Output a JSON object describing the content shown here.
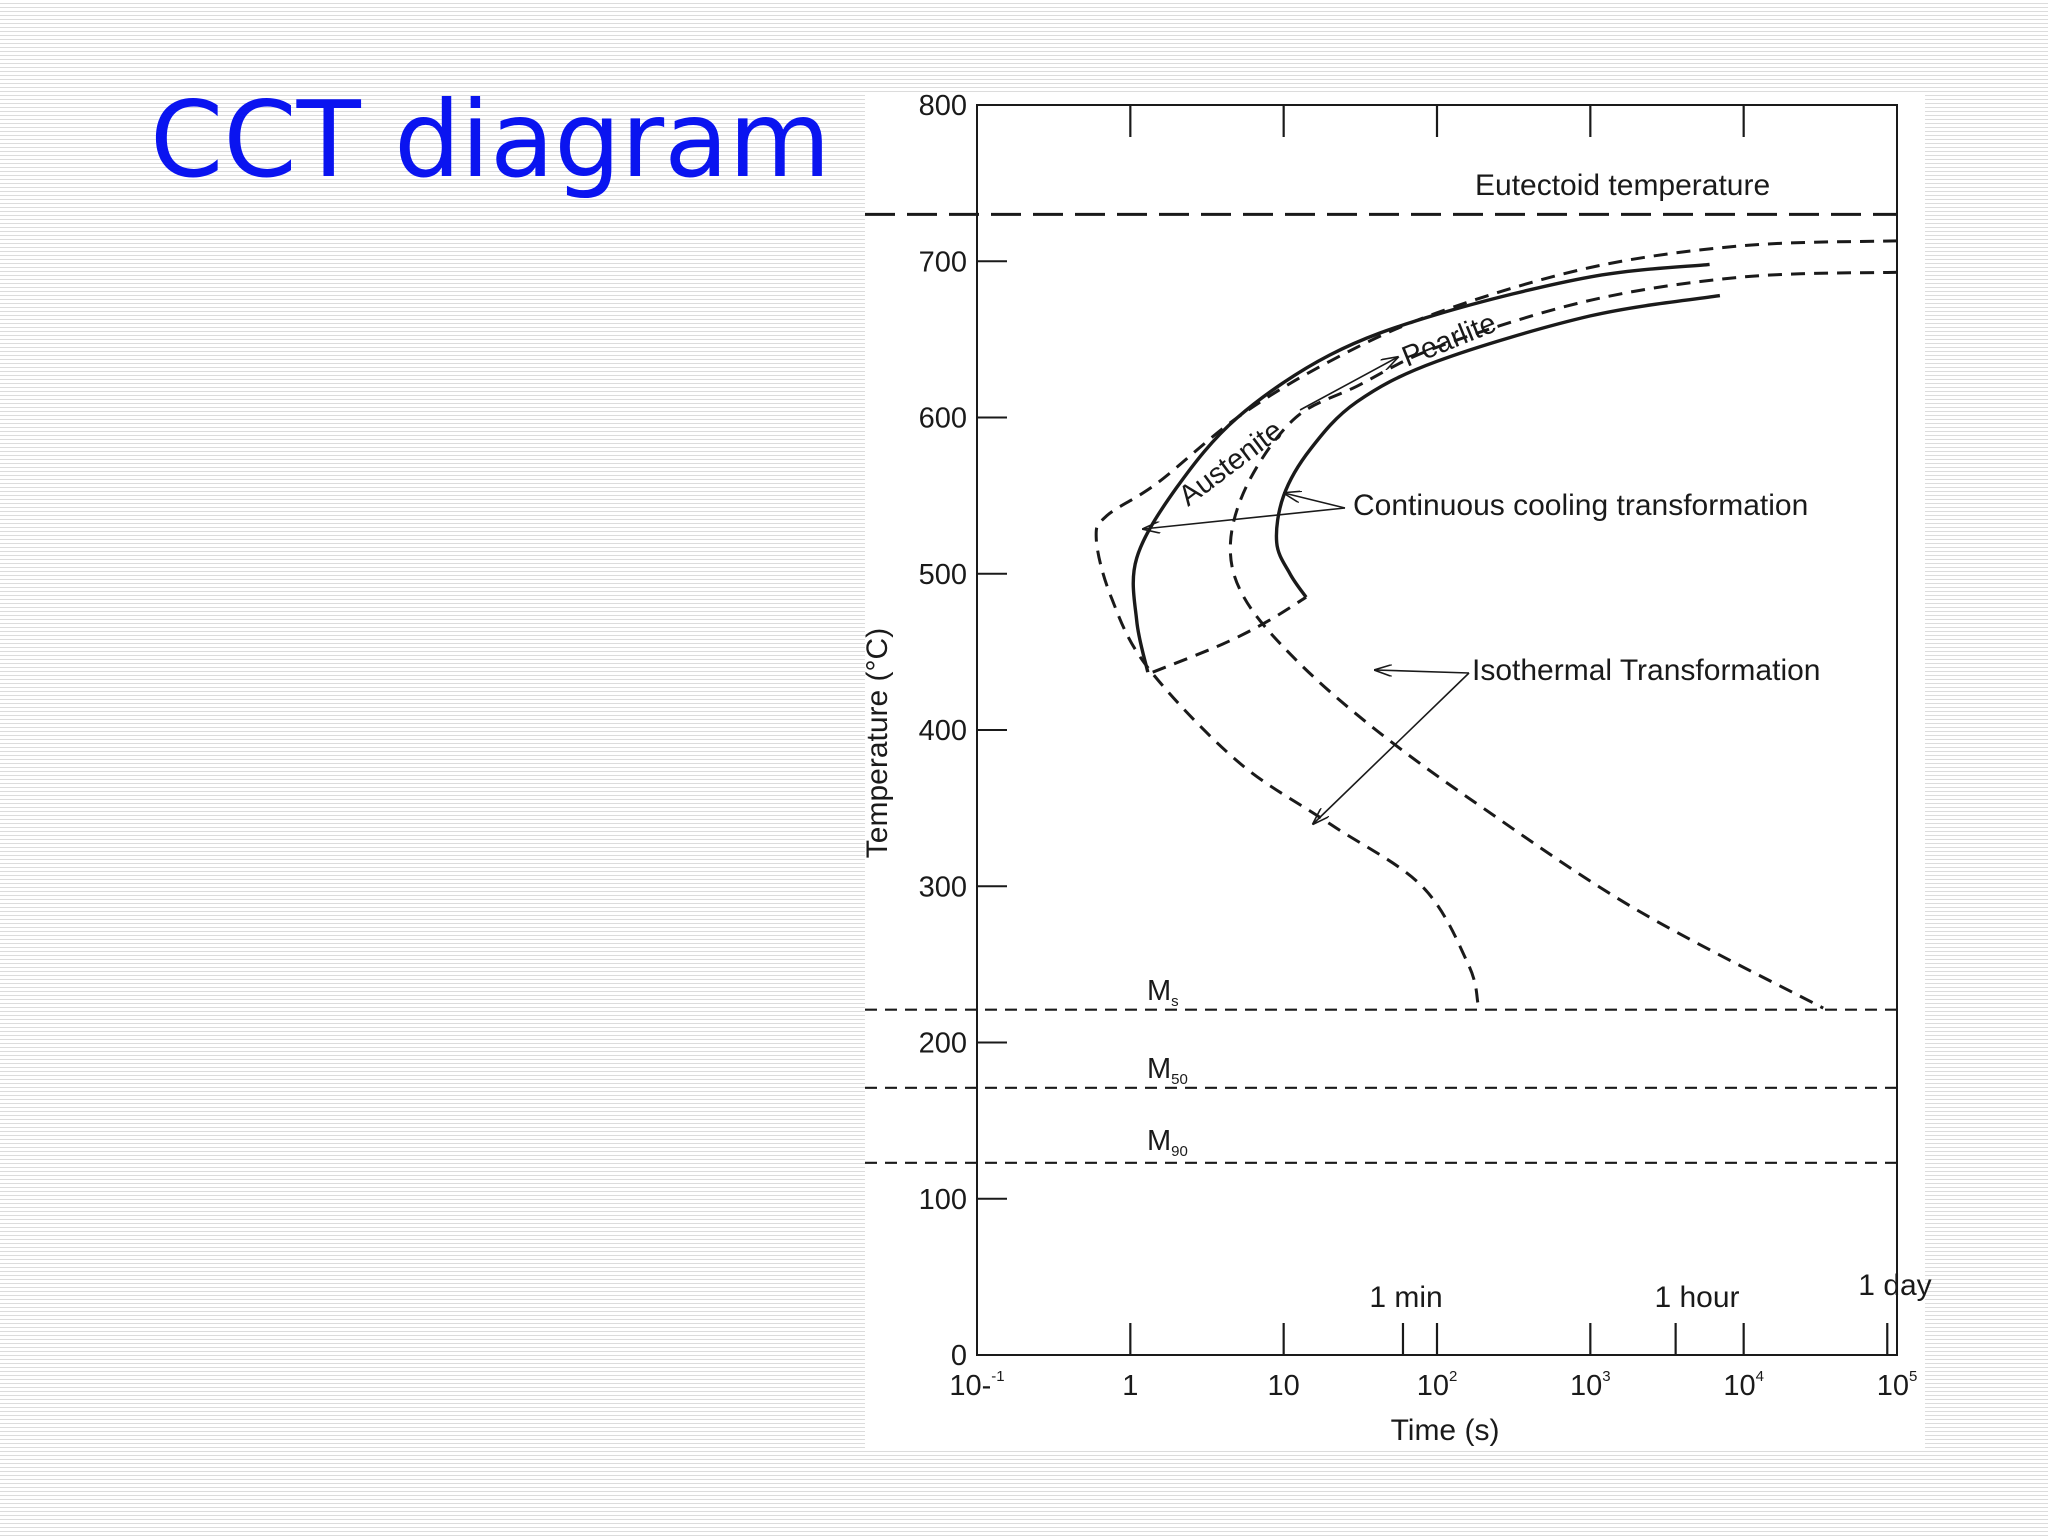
{
  "slide": {
    "title": "CCT diagram"
  },
  "colors": {
    "title": "#0a14f0",
    "ink": "#1a1a1a"
  },
  "chart_data": {
    "type": "line",
    "ylabel": "Temperature (°C)",
    "xlabel": "Time (s)",
    "xscale": "log",
    "xlim": [
      0.1,
      100000
    ],
    "ylim": [
      0,
      800
    ],
    "x_tick_values": [
      0.1,
      1,
      10,
      100,
      1000,
      10000,
      100000
    ],
    "x_tick_labels": [
      {
        "base": "10",
        "sup": "-1",
        "dash": true
      },
      {
        "base": "1",
        "sup": ""
      },
      {
        "base": "10",
        "sup": ""
      },
      {
        "base": "10",
        "sup": "2"
      },
      {
        "base": "10",
        "sup": "3"
      },
      {
        "base": "10",
        "sup": "4"
      },
      {
        "base": "10",
        "sup": "5"
      }
    ],
    "y_ticks": [
      0,
      100,
      200,
      300,
      400,
      500,
      600,
      700,
      800
    ],
    "top_tick_values": [
      1,
      10,
      100,
      1000,
      10000
    ],
    "time_markers": [
      {
        "label": "1 min",
        "value": 60
      },
      {
        "label": "1 hour",
        "value": 3600
      },
      {
        "label": "1 day",
        "value": 86400
      }
    ],
    "horizontal_lines": [
      {
        "name": "Eutectoid temperature",
        "label": "Eutectoid temperature",
        "y": 730,
        "style": "long-dash"
      },
      {
        "name": "Ms",
        "label_main": "M",
        "label_sub": "s",
        "y": 221,
        "style": "dash"
      },
      {
        "name": "M50",
        "label_main": "M",
        "label_sub": "50",
        "y": 171,
        "style": "dash"
      },
      {
        "name": "M90",
        "label_main": "M",
        "label_sub": "90",
        "y": 123,
        "style": "dash"
      }
    ],
    "series": [
      {
        "style": "dashed",
        "points": [
          [
            100000,
            713
          ],
          [
            10000,
            710
          ],
          [
            1000,
            696
          ],
          [
            100,
            667
          ],
          [
            20,
            636
          ],
          [
            5,
            600
          ],
          [
            1.5,
            558
          ],
          [
            0.7,
            537
          ],
          [
            0.6,
            522
          ],
          [
            0.75,
            485
          ],
          [
            1.3,
            440
          ],
          [
            5,
            380
          ],
          [
            20,
            340
          ],
          [
            80,
            300
          ],
          [
            160,
            250
          ],
          [
            185,
            225
          ]
        ]
      },
      {
        "style": "dashed",
        "points": [
          [
            100000,
            693
          ],
          [
            10000,
            690
          ],
          [
            1000,
            675
          ],
          [
            100,
            645
          ],
          [
            30,
            620
          ],
          [
            12,
            600
          ],
          [
            6,
            560
          ],
          [
            4.5,
            520
          ],
          [
            5.5,
            485
          ],
          [
            12,
            445
          ],
          [
            40,
            400
          ],
          [
            200,
            350
          ],
          [
            2000,
            285
          ],
          [
            33000,
            222
          ]
        ]
      },
      {
        "style": "solid",
        "points": [
          [
            6000,
            698
          ],
          [
            1000,
            690
          ],
          [
            100,
            666
          ],
          [
            20,
            640
          ],
          [
            5,
            600
          ],
          [
            2,
            555
          ],
          [
            1.1,
            510
          ],
          [
            1.1,
            470
          ],
          [
            1.3,
            437
          ]
        ]
      },
      {
        "style": "solid",
        "points": [
          [
            7000,
            678
          ],
          [
            1000,
            665
          ],
          [
            100,
            636
          ],
          [
            30,
            610
          ],
          [
            15,
            580
          ],
          [
            10,
            550
          ],
          [
            9,
            520
          ],
          [
            11,
            500
          ],
          [
            14,
            485
          ]
        ]
      },
      {
        "style": "dashed",
        "points": [
          [
            1.4,
            437
          ],
          [
            4,
            455
          ],
          [
            8,
            470
          ],
          [
            14,
            485
          ]
        ]
      }
    ],
    "annotations": [
      {
        "text": "Austenite",
        "rotation": -37
      },
      {
        "text": "Pearlite",
        "rotation": -22
      },
      {
        "text": "Continuous cooling transformation",
        "rotation": 0
      },
      {
        "text": "Isothermal Transformation",
        "rotation": 0
      }
    ]
  }
}
